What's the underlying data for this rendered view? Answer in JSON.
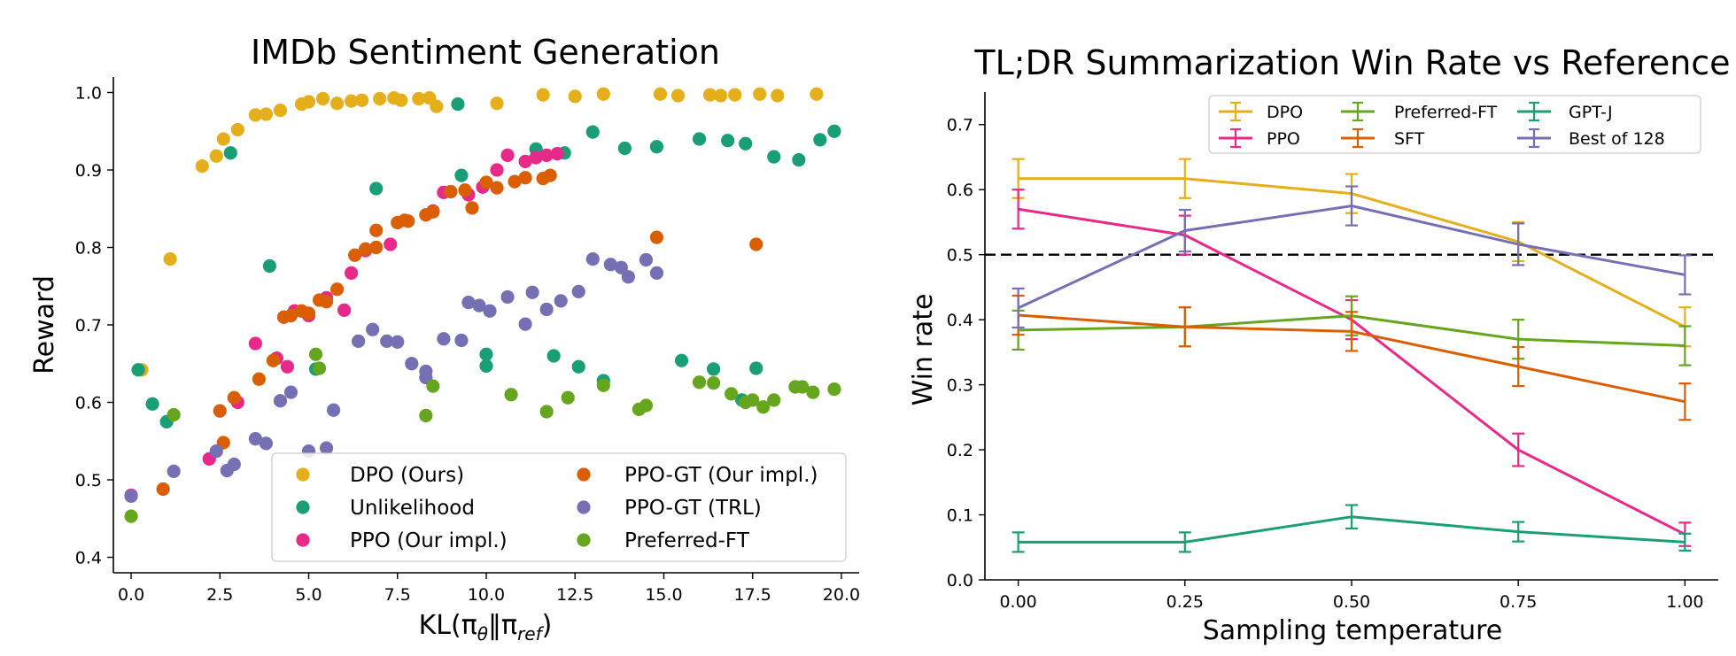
{
  "colors": {
    "DPO": "#e5ae1b",
    "Unlikelihood": "#1a9e77",
    "PPO": "#e7298a",
    "PPO-GT-ours": "#d95f02",
    "PPO-GT-TRL": "#7570b3",
    "Preferred-FT": "#66a61e"
  },
  "chart_data": [
    {
      "type": "scatter",
      "title": "IMDb Sentiment Generation",
      "xlabel_main": "KL(π",
      "xlabel_sub1": "θ",
      "xlabel_mid": "‖π",
      "xlabel_sub2": "ref",
      "xlabel_end": ")",
      "ylabel": "Reward",
      "xlim": [
        -0.5,
        20.5
      ],
      "ylim": [
        0.38,
        1.02
      ],
      "xticks": [
        "0.0",
        "2.5",
        "5.0",
        "7.5",
        "10.0",
        "12.5",
        "15.0",
        "17.5",
        "20.0"
      ],
      "yticks": [
        "0.4",
        "0.5",
        "0.6",
        "0.7",
        "0.8",
        "0.9",
        "1.0"
      ],
      "legend_position": "lower-right",
      "series": [
        {
          "name": "DPO (Ours)",
          "color_key": "DPO",
          "points": [
            [
              0.3,
              0.642
            ],
            [
              1.1,
              0.785
            ],
            [
              2.0,
              0.905
            ],
            [
              2.4,
              0.918
            ],
            [
              2.6,
              0.94
            ],
            [
              3.0,
              0.952
            ],
            [
              3.5,
              0.971
            ],
            [
              3.8,
              0.972
            ],
            [
              4.2,
              0.977
            ],
            [
              4.8,
              0.985
            ],
            [
              5.0,
              0.988
            ],
            [
              5.4,
              0.992
            ],
            [
              5.8,
              0.986
            ],
            [
              6.2,
              0.989
            ],
            [
              6.5,
              0.99
            ],
            [
              7.0,
              0.992
            ],
            [
              7.4,
              0.993
            ],
            [
              7.6,
              0.99
            ],
            [
              8.1,
              0.992
            ],
            [
              8.4,
              0.993
            ],
            [
              8.6,
              0.982
            ],
            [
              10.3,
              0.986
            ],
            [
              11.6,
              0.997
            ],
            [
              12.5,
              0.995
            ],
            [
              13.3,
              0.998
            ],
            [
              14.9,
              0.998
            ],
            [
              15.4,
              0.996
            ],
            [
              16.3,
              0.997
            ],
            [
              16.6,
              0.996
            ],
            [
              17.0,
              0.997
            ],
            [
              17.7,
              0.998
            ],
            [
              18.2,
              0.996
            ],
            [
              19.3,
              0.998
            ]
          ]
        },
        {
          "name": "Unlikelihood",
          "color_key": "Unlikelihood",
          "points": [
            [
              0.2,
              0.642
            ],
            [
              0.6,
              0.598
            ],
            [
              1.0,
              0.575
            ],
            [
              2.8,
              0.922
            ],
            [
              3.9,
              0.776
            ],
            [
              5.2,
              0.643
            ],
            [
              6.9,
              0.876
            ],
            [
              9.2,
              0.985
            ],
            [
              9.3,
              0.893
            ],
            [
              10.0,
              0.647
            ],
            [
              10.0,
              0.662
            ],
            [
              11.4,
              0.927
            ],
            [
              11.9,
              0.66
            ],
            [
              12.2,
              0.922
            ],
            [
              12.6,
              0.646
            ],
            [
              13.0,
              0.949
            ],
            [
              13.3,
              0.628
            ],
            [
              13.9,
              0.928
            ],
            [
              14.8,
              0.93
            ],
            [
              15.5,
              0.654
            ],
            [
              16.0,
              0.94
            ],
            [
              16.4,
              0.643
            ],
            [
              16.8,
              0.938
            ],
            [
              17.2,
              0.603
            ],
            [
              17.3,
              0.934
            ],
            [
              17.6,
              0.644
            ],
            [
              18.1,
              0.917
            ],
            [
              18.8,
              0.913
            ],
            [
              19.4,
              0.939
            ],
            [
              19.8,
              0.95
            ]
          ]
        },
        {
          "name": "PPO (Our impl.)",
          "color_key": "PPO",
          "points": [
            [
              0.0,
              0.48
            ],
            [
              2.2,
              0.527
            ],
            [
              3.0,
              0.6
            ],
            [
              3.5,
              0.676
            ],
            [
              4.1,
              0.657
            ],
            [
              4.4,
              0.646
            ],
            [
              4.6,
              0.718
            ],
            [
              5.0,
              0.712
            ],
            [
              5.5,
              0.735
            ],
            [
              6.0,
              0.719
            ],
            [
              6.2,
              0.767
            ],
            [
              6.6,
              0.796
            ],
            [
              7.3,
              0.804
            ],
            [
              8.5,
              0.847
            ],
            [
              8.8,
              0.871
            ],
            [
              9.5,
              0.868
            ],
            [
              9.9,
              0.878
            ],
            [
              10.3,
              0.9
            ],
            [
              10.6,
              0.919
            ],
            [
              11.1,
              0.911
            ],
            [
              11.4,
              0.916
            ],
            [
              11.7,
              0.919
            ],
            [
              12.0,
              0.921
            ]
          ]
        },
        {
          "name": "PPO-GT (Our impl.)",
          "color_key": "PPO-GT-ours",
          "points": [
            [
              0.9,
              0.488
            ],
            [
              2.5,
              0.589
            ],
            [
              2.6,
              0.548
            ],
            [
              2.9,
              0.606
            ],
            [
              3.6,
              0.63
            ],
            [
              4.0,
              0.654
            ],
            [
              4.3,
              0.71
            ],
            [
              4.5,
              0.712
            ],
            [
              4.8,
              0.718
            ],
            [
              5.0,
              0.715
            ],
            [
              5.3,
              0.732
            ],
            [
              5.5,
              0.73
            ],
            [
              5.8,
              0.746
            ],
            [
              6.3,
              0.79
            ],
            [
              6.6,
              0.798
            ],
            [
              6.9,
              0.8
            ],
            [
              6.9,
              0.822
            ],
            [
              7.5,
              0.832
            ],
            [
              7.7,
              0.835
            ],
            [
              7.8,
              0.834
            ],
            [
              8.3,
              0.842
            ],
            [
              8.5,
              0.846
            ],
            [
              9.0,
              0.872
            ],
            [
              9.4,
              0.874
            ],
            [
              9.6,
              0.851
            ],
            [
              10.0,
              0.884
            ],
            [
              10.3,
              0.877
            ],
            [
              10.8,
              0.885
            ],
            [
              11.1,
              0.89
            ],
            [
              11.6,
              0.889
            ],
            [
              11.8,
              0.893
            ],
            [
              14.8,
              0.813
            ],
            [
              17.6,
              0.804
            ]
          ]
        },
        {
          "name": "PPO-GT (TRL)",
          "color_key": "PPO-GT-TRL",
          "points": [
            [
              0.0,
              0.479
            ],
            [
              1.2,
              0.511
            ],
            [
              2.4,
              0.537
            ],
            [
              2.7,
              0.512
            ],
            [
              2.9,
              0.52
            ],
            [
              3.5,
              0.553
            ],
            [
              3.8,
              0.547
            ],
            [
              4.2,
              0.602
            ],
            [
              4.5,
              0.613
            ],
            [
              5.0,
              0.537
            ],
            [
              5.5,
              0.541
            ],
            [
              5.7,
              0.59
            ],
            [
              6.4,
              0.679
            ],
            [
              6.8,
              0.694
            ],
            [
              7.2,
              0.679
            ],
            [
              7.5,
              0.678
            ],
            [
              7.9,
              0.65
            ],
            [
              8.3,
              0.632
            ],
            [
              8.3,
              0.64
            ],
            [
              8.8,
              0.682
            ],
            [
              9.3,
              0.68
            ],
            [
              9.5,
              0.729
            ],
            [
              9.8,
              0.725
            ],
            [
              10.1,
              0.718
            ],
            [
              10.6,
              0.736
            ],
            [
              11.1,
              0.701
            ],
            [
              11.3,
              0.742
            ],
            [
              11.7,
              0.72
            ],
            [
              12.1,
              0.731
            ],
            [
              12.6,
              0.743
            ],
            [
              13.0,
              0.785
            ],
            [
              13.5,
              0.778
            ],
            [
              13.8,
              0.774
            ],
            [
              14.0,
              0.762
            ],
            [
              14.5,
              0.784
            ],
            [
              14.8,
              0.767
            ]
          ]
        },
        {
          "name": "Preferred-FT",
          "color_key": "Preferred-FT",
          "points": [
            [
              0.0,
              0.453
            ],
            [
              1.2,
              0.584
            ],
            [
              5.2,
              0.662
            ],
            [
              5.3,
              0.644
            ],
            [
              8.5,
              0.621
            ],
            [
              8.3,
              0.583
            ],
            [
              10.7,
              0.61
            ],
            [
              11.7,
              0.588
            ],
            [
              12.3,
              0.606
            ],
            [
              13.3,
              0.622
            ],
            [
              14.3,
              0.591
            ],
            [
              14.5,
              0.596
            ],
            [
              16.0,
              0.626
            ],
            [
              16.4,
              0.625
            ],
            [
              16.9,
              0.611
            ],
            [
              17.3,
              0.6
            ],
            [
              17.5,
              0.603
            ],
            [
              17.8,
              0.594
            ],
            [
              18.1,
              0.603
            ],
            [
              18.7,
              0.62
            ],
            [
              18.9,
              0.62
            ],
            [
              19.2,
              0.613
            ],
            [
              19.8,
              0.617
            ]
          ]
        }
      ]
    },
    {
      "type": "line",
      "title": "TL;DR Summarization Win Rate vs Reference",
      "xlabel": "Sampling temperature",
      "ylabel": "Win rate",
      "x": [
        0.0,
        0.25,
        0.5,
        0.75,
        1.0
      ],
      "xlim": [
        -0.05,
        1.05
      ],
      "ylim": [
        0.0,
        0.75
      ],
      "xticks": [
        "0.00",
        "0.25",
        "0.50",
        "0.75",
        "1.00"
      ],
      "yticks": [
        "0.0",
        "0.1",
        "0.2",
        "0.3",
        "0.4",
        "0.5",
        "0.6",
        "0.7"
      ],
      "reference_line": 0.5,
      "legend_position": "top",
      "series": [
        {
          "name": "DPO",
          "color_key": "DPO",
          "values": [
            0.617,
            0.617,
            0.594,
            0.52,
            0.389
          ],
          "err": [
            0.03,
            0.03,
            0.03,
            0.03,
            0.03
          ]
        },
        {
          "name": "PPO",
          "color_key": "PPO",
          "values": [
            0.57,
            0.53,
            0.4,
            0.2,
            0.07
          ],
          "err": [
            0.03,
            0.03,
            0.03,
            0.025,
            0.018
          ]
        },
        {
          "name": "Preferred-FT",
          "color_key": "Preferred-FT",
          "values": [
            0.384,
            0.389,
            0.406,
            0.37,
            0.36
          ],
          "err": [
            0.03,
            0.03,
            0.03,
            0.03,
            0.03
          ]
        },
        {
          "name": "SFT",
          "color_key": "PPO-GT-ours",
          "values": [
            0.407,
            0.389,
            0.382,
            0.328,
            0.274
          ],
          "err": [
            0.03,
            0.03,
            0.03,
            0.03,
            0.028
          ]
        },
        {
          "name": "GPT-J",
          "color_key": "Unlikelihood",
          "values": [
            0.058,
            0.058,
            0.097,
            0.074,
            0.058
          ],
          "err": [
            0.015,
            0.015,
            0.018,
            0.015,
            0.013
          ]
        },
        {
          "name": "Best of 128",
          "color_key": "PPO-GT-TRL",
          "values": [
            0.418,
            0.537,
            0.575,
            0.516,
            0.469
          ],
          "err": [
            0.03,
            0.032,
            0.03,
            0.032,
            0.03
          ]
        }
      ]
    }
  ]
}
